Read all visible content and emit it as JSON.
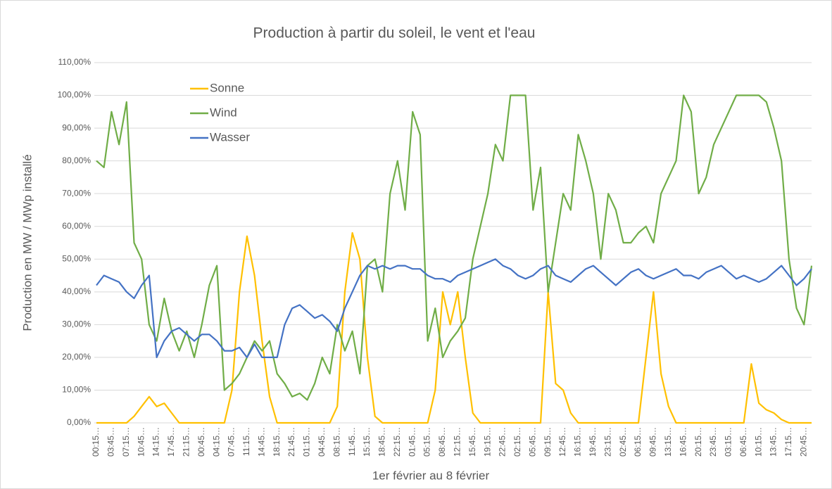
{
  "chart_data": {
    "type": "line",
    "title": "Production à partir du soleil, le vent et l'eau",
    "x_label": "1er février au 8 février",
    "y_label": "Production en MW / MWp installé",
    "categories": [
      "00:15…",
      null,
      "03:45…",
      null,
      "07:15…",
      null,
      "10:45…",
      null,
      "14:15…",
      null,
      "17:45…",
      null,
      "21:15…",
      null,
      "00:45…",
      null,
      "04:15…",
      null,
      "07:45…",
      null,
      "11:15…",
      null,
      "14:45…",
      null,
      "18:15…",
      null,
      "21:45…",
      null,
      "01:15…",
      null,
      "04:45…",
      null,
      "08:15…",
      null,
      "11:45…",
      null,
      "15:15…",
      null,
      "18:45…",
      null,
      "22:15…",
      null,
      "01:45…",
      null,
      "05:15…",
      null,
      "08:45…",
      null,
      "12:15…",
      null,
      "15:45…",
      null,
      "19:15…",
      null,
      "22:45…",
      null,
      "02:15…",
      null,
      "05:45…",
      null,
      "09:15…",
      null,
      "12:45…",
      null,
      "16:15…",
      null,
      "19:45…",
      null,
      "23:15…",
      null,
      "02:45…",
      null,
      "06:15…",
      null,
      "09:45…",
      null,
      "13:15…",
      null,
      "16:45…",
      null,
      "20:15…",
      null,
      "23:45…",
      null,
      "03:15…",
      null,
      "06:45…",
      null,
      "10:15…",
      null,
      "13:45…",
      null,
      "17:15…",
      null,
      "20:45…",
      null
    ],
    "series": [
      {
        "name": "Sonne",
        "color": "#ffc000",
        "values": [
          0,
          0,
          0,
          0,
          0,
          2,
          5,
          8,
          5,
          6,
          3,
          0,
          0,
          0,
          0,
          0,
          0,
          0,
          10,
          40,
          57,
          45,
          25,
          8,
          0,
          0,
          0,
          0,
          0,
          0,
          0,
          0,
          5,
          40,
          58,
          50,
          20,
          2,
          0,
          0,
          0,
          0,
          0,
          0,
          0,
          10,
          40,
          30,
          40,
          20,
          3,
          0,
          0,
          0,
          0,
          0,
          0,
          0,
          0,
          0,
          40,
          12,
          10,
          3,
          0,
          0,
          0,
          0,
          0,
          0,
          0,
          0,
          0,
          20,
          40,
          15,
          5,
          0,
          0,
          0,
          0,
          0,
          0,
          0,
          0,
          0,
          0,
          18,
          6,
          4,
          3,
          1,
          0,
          0,
          0,
          0
        ]
      },
      {
        "name": "Wind",
        "color": "#70ad47",
        "values": [
          80,
          78,
          95,
          85,
          98,
          55,
          50,
          30,
          25,
          38,
          28,
          22,
          28,
          20,
          30,
          42,
          48,
          10,
          12,
          15,
          20,
          25,
          22,
          25,
          15,
          12,
          8,
          9,
          7,
          12,
          20,
          15,
          30,
          22,
          28,
          15,
          48,
          50,
          40,
          70,
          80,
          65,
          95,
          88,
          25,
          35,
          20,
          25,
          28,
          32,
          50,
          60,
          70,
          85,
          80,
          100,
          100,
          100,
          65,
          78,
          40,
          55,
          70,
          65,
          88,
          80,
          70,
          50,
          70,
          65,
          55,
          55,
          58,
          60,
          55,
          70,
          75,
          80,
          100,
          95,
          70,
          75,
          85,
          90,
          95,
          100,
          100,
          100,
          100,
          98,
          90,
          80,
          50,
          35,
          30,
          48
        ]
      },
      {
        "name": "Wasser",
        "color": "#4472c4",
        "values": [
          42,
          45,
          44,
          43,
          40,
          38,
          42,
          45,
          20,
          25,
          28,
          29,
          27,
          25,
          27,
          27,
          25,
          22,
          22,
          23,
          20,
          24,
          20,
          20,
          20,
          30,
          35,
          36,
          34,
          32,
          33,
          31,
          28,
          35,
          40,
          45,
          48,
          47,
          48,
          47,
          48,
          48,
          47,
          47,
          45,
          44,
          44,
          43,
          45,
          46,
          47,
          48,
          49,
          50,
          48,
          47,
          45,
          44,
          45,
          47,
          48,
          45,
          44,
          43,
          45,
          47,
          48,
          46,
          44,
          42,
          44,
          46,
          47,
          45,
          44,
          45,
          46,
          47,
          45,
          45,
          44,
          46,
          47,
          48,
          46,
          44,
          45,
          44,
          43,
          44,
          46,
          48,
          45,
          42,
          44,
          47
        ]
      }
    ],
    "ylim": [
      0,
      110
    ],
    "yticks": [
      {
        "value": 0,
        "label": "0,00%"
      },
      {
        "value": 10,
        "label": "10,00%"
      },
      {
        "value": 20,
        "label": "20,00%"
      },
      {
        "value": 30,
        "label": "30,00%"
      },
      {
        "value": 40,
        "label": "40,00%"
      },
      {
        "value": 50,
        "label": "50,00%"
      },
      {
        "value": 60,
        "label": "60,00%"
      },
      {
        "value": 70,
        "label": "70,00%"
      },
      {
        "value": 80,
        "label": "80,00%"
      },
      {
        "value": 90,
        "label": "90,00%"
      },
      {
        "value": 100,
        "label": "100,00%"
      },
      {
        "value": 110,
        "label": "110,00%"
      }
    ],
    "grid": true
  }
}
